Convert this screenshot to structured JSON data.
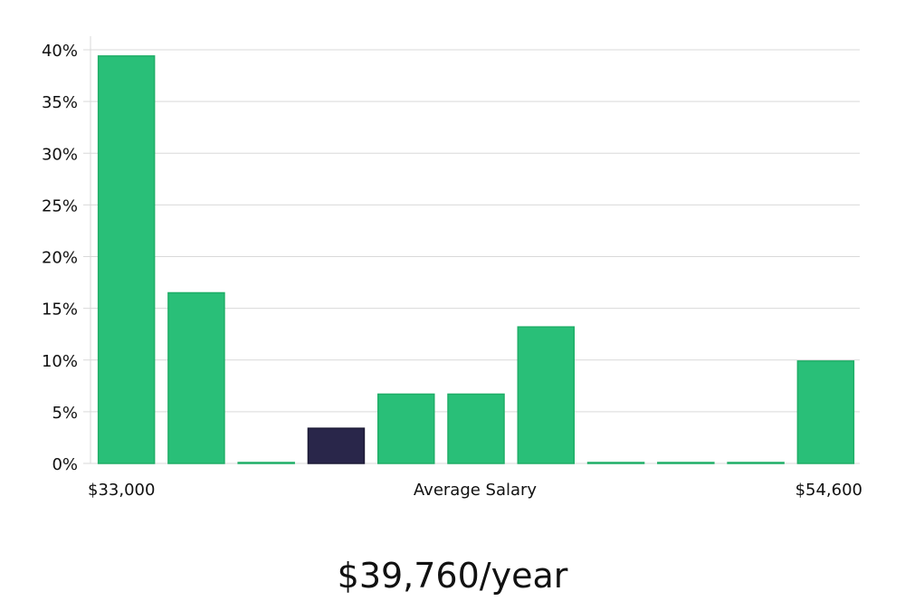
{
  "chart_data": {
    "type": "bar",
    "categories": [
      "$33,000",
      "",
      "",
      "",
      "",
      "",
      "",
      "",
      "",
      "",
      "$54,600"
    ],
    "values": [
      39.4,
      16.5,
      0,
      3.4,
      6.7,
      6.7,
      13.2,
      0,
      0,
      0,
      9.9
    ],
    "highlight_index": 3,
    "x_start_label": "$33,000",
    "x_mid_label": "Average Salary",
    "x_end_label": "$54,600",
    "y_ticks": [
      "0%",
      "5%",
      "10%",
      "15%",
      "20%",
      "25%",
      "30%",
      "35%",
      "40%"
    ],
    "ylim": [
      0,
      40
    ],
    "grid": true,
    "colors": {
      "bar": "#29bf78",
      "bar_stroke": "#1fae67",
      "highlight": "#29264a",
      "highlight_stroke": "#1d1b36"
    }
  },
  "summary": {
    "value": "$39,760/year"
  }
}
